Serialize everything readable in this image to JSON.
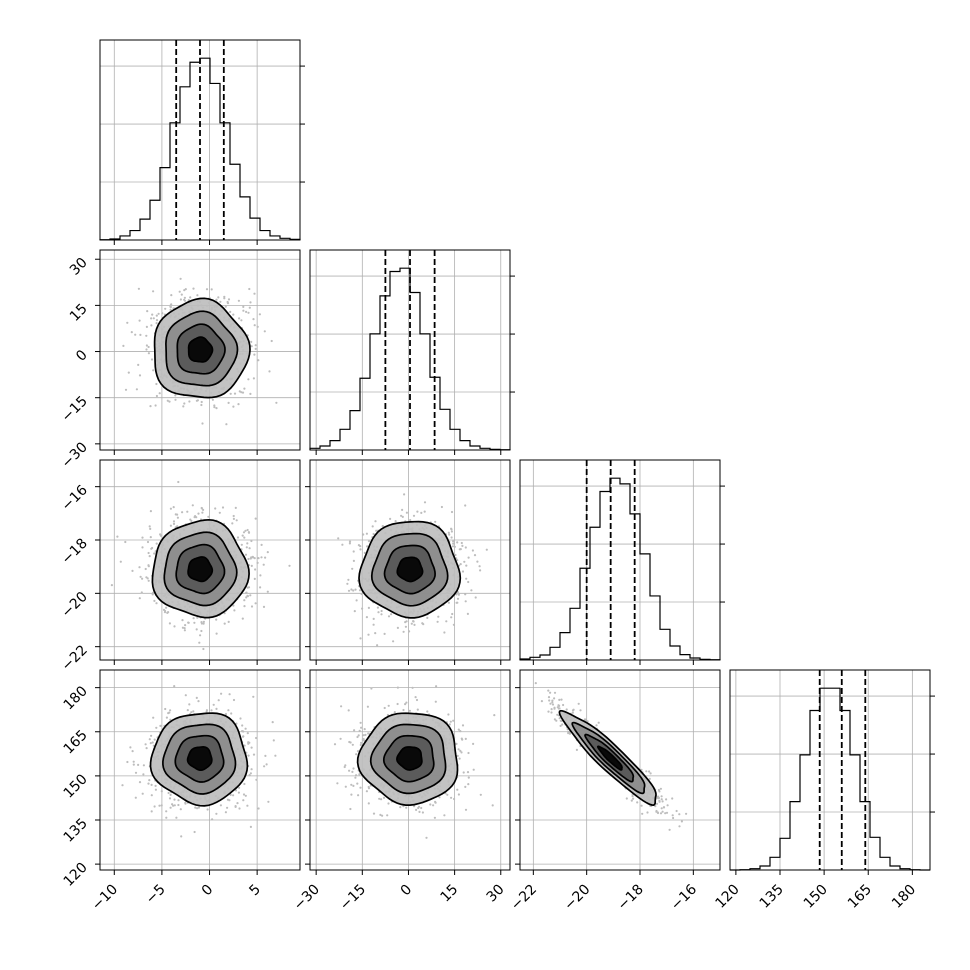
{
  "chart_data": {
    "type": "corner",
    "title": "",
    "parameters": [
      {
        "index": 0,
        "label": "",
        "range": [
          -11.5,
          9.5
        ],
        "ticks": [
          -10,
          -5,
          0,
          5
        ],
        "tick_labels": [
          "−10",
          "−5",
          "0",
          "5"
        ],
        "quantiles": [
          -3.5,
          -1.0,
          1.5
        ],
        "median": -1.0,
        "sigma": 2.5
      },
      {
        "index": 1,
        "label": "",
        "range": [
          -32.0,
          33.0
        ],
        "ticks": [
          -30,
          -15,
          0,
          15,
          30
        ],
        "tick_labels": [
          "−30",
          "−15",
          "0",
          "15",
          "30"
        ],
        "quantiles": [
          -7.5,
          0.5,
          8.5
        ],
        "median": 0.5,
        "sigma": 8.0
      },
      {
        "index": 2,
        "label": "",
        "range": [
          -22.5,
          -15.0
        ],
        "ticks": [
          -22,
          -20,
          -18,
          -16
        ],
        "tick_labels": [
          "−22",
          "−20",
          "−18",
          "−16"
        ],
        "quantiles": [
          -20.0,
          -19.1,
          -18.2
        ],
        "median": -19.1,
        "sigma": 0.9
      },
      {
        "index": 3,
        "label": "",
        "range": [
          118.0,
          186.0
        ],
        "ticks": [
          120,
          135,
          150,
          165,
          180
        ],
        "tick_labels": [
          "120",
          "135",
          "150",
          "165",
          "180"
        ],
        "quantiles": [
          148.5,
          156.0,
          164.0
        ],
        "median": 156.0,
        "sigma": 7.8
      }
    ],
    "histograms": [
      {
        "param": 0,
        "bin_edges": [
          -11.5,
          -10.45,
          -9.4,
          -8.35,
          -7.3,
          -6.25,
          -5.2,
          -4.15,
          -3.1,
          -2.05,
          -1.0,
          0.05,
          1.1,
          2.15,
          3.2,
          4.25,
          5.3,
          6.35,
          7.4,
          8.45,
          9.5
        ],
        "counts": [
          1,
          3,
          12,
          28,
          62,
          118,
          215,
          348,
          455,
          528,
          540,
          465,
          348,
          225,
          128,
          65,
          28,
          12,
          5,
          2
        ]
      },
      {
        "param": 1,
        "bin_edges": [
          -32.0,
          -28.75,
          -25.5,
          -22.25,
          -19.0,
          -15.75,
          -12.5,
          -9.25,
          -6.0,
          -2.75,
          0.5,
          3.75,
          7.0,
          10.25,
          13.5,
          16.75,
          20.0,
          23.25,
          26.5,
          29.75,
          33.0
        ],
        "counts": [
          5,
          12,
          28,
          62,
          118,
          215,
          348,
          462,
          535,
          545,
          472,
          348,
          218,
          122,
          62,
          28,
          12,
          5,
          2,
          1
        ]
      },
      {
        "param": 2,
        "bin_edges": [
          -22.5,
          -22.125,
          -21.75,
          -21.375,
          -21.0,
          -20.625,
          -20.25,
          -19.875,
          -19.5,
          -19.125,
          -18.75,
          -18.375,
          -18.0,
          -17.625,
          -17.25,
          -16.875,
          -16.5,
          -16.125,
          -15.75,
          -15.375,
          -15.0
        ],
        "counts": [
          3,
          8,
          15,
          38,
          82,
          155,
          275,
          398,
          505,
          545,
          528,
          438,
          318,
          192,
          92,
          42,
          16,
          6,
          2,
          1
        ]
      },
      {
        "param": 3,
        "bin_edges": [
          118.0,
          121.4,
          124.8,
          128.2,
          131.6,
          135.0,
          138.4,
          141.8,
          145.2,
          148.6,
          152.0,
          155.4,
          158.8,
          162.2,
          165.6,
          169.0,
          172.4,
          175.8,
          179.2,
          182.6,
          186.0
        ],
        "counts": [
          0,
          1,
          4,
          12,
          38,
          95,
          205,
          345,
          478,
          545,
          545,
          478,
          345,
          205,
          98,
          38,
          12,
          4,
          1,
          0
        ]
      }
    ],
    "pairs": [
      {
        "x_param": 0,
        "y_param": 1,
        "correlation": 0.0
      },
      {
        "x_param": 0,
        "y_param": 2,
        "correlation": 0.0
      },
      {
        "x_param": 1,
        "y_param": 2,
        "correlation": 0.0
      },
      {
        "x_param": 0,
        "y_param": 3,
        "correlation": 0.0
      },
      {
        "x_param": 1,
        "y_param": 3,
        "correlation": 0.0
      },
      {
        "x_param": 2,
        "y_param": 3,
        "correlation": -0.93
      }
    ],
    "contour_levels_sigma": [
      0.5,
      1.0,
      1.5,
      2.0
    ],
    "grid": true,
    "legend": "none",
    "colors": {
      "line": "#000000",
      "grid": "#b0b0b0",
      "scatter": "#bdbdbd",
      "density": "#000000"
    }
  }
}
